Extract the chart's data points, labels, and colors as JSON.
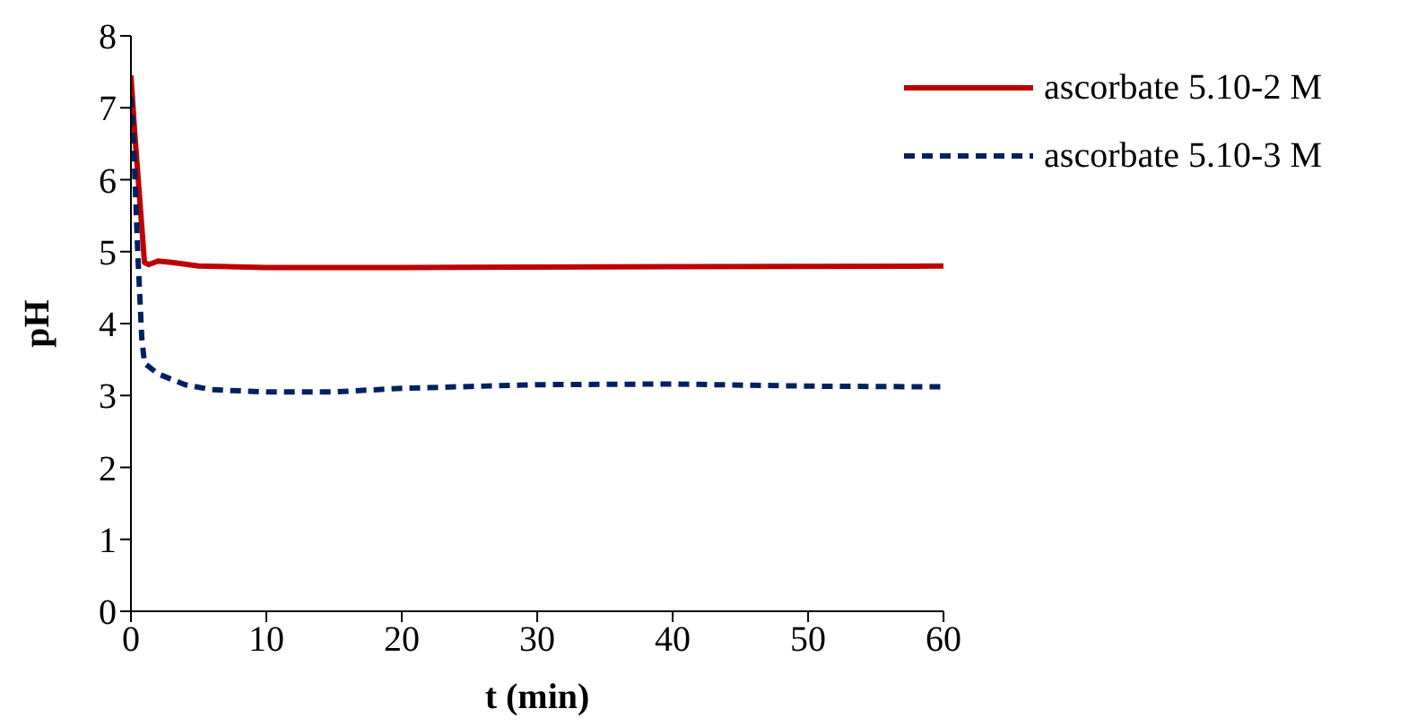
{
  "chart_data": {
    "type": "line",
    "xlabel": "t (min)",
    "ylabel": "pH",
    "xlim": [
      0,
      60
    ],
    "xticks": [
      0,
      10,
      20,
      30,
      40,
      50,
      60
    ],
    "ylim": [
      0,
      8
    ],
    "yticks": [
      0,
      1,
      2,
      3,
      4,
      5,
      6,
      7,
      8
    ],
    "grid": false,
    "legend": "top right",
    "marker": "none",
    "series": [
      {
        "name": "ascorbate 5.10-2 M",
        "color": "#c00000",
        "line_style": "solid",
        "x": [
          0,
          0.3,
          1,
          1.3,
          2,
          3,
          5,
          10,
          20,
          40,
          60
        ],
        "values": [
          7.45,
          6.6,
          4.85,
          4.82,
          4.87,
          4.85,
          4.8,
          4.78,
          4.78,
          4.79,
          4.8
        ]
      },
      {
        "name": "ascorbate 5.10-3 M",
        "color": "#002060",
        "line_style": "dashed",
        "x": [
          0,
          0.2,
          0.5,
          0.8,
          1,
          2,
          4,
          6,
          10,
          15,
          20,
          30,
          40,
          50,
          60
        ],
        "values": [
          7.15,
          6.5,
          5,
          3.8,
          3.45,
          3.3,
          3.15,
          3.08,
          3.05,
          3.05,
          3.1,
          3.15,
          3.16,
          3.13,
          3.12
        ]
      }
    ]
  }
}
